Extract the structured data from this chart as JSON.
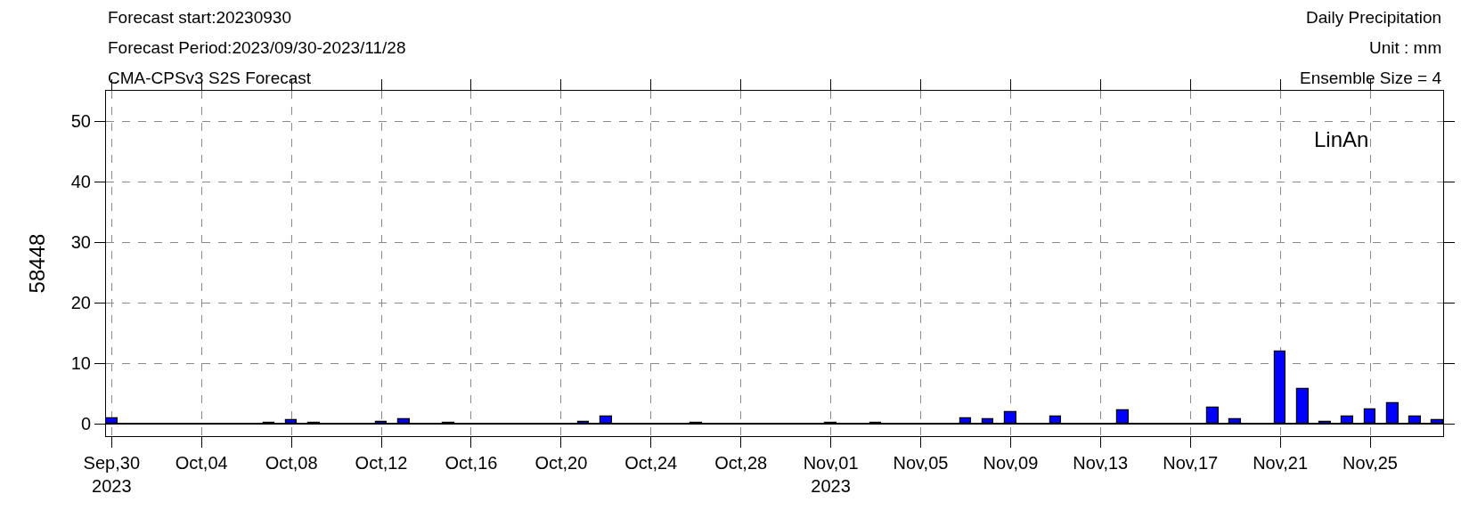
{
  "chart_data": {
    "type": "bar",
    "title": "Daily Precipitation",
    "subtitle": "Unit : mm",
    "ylabel": "58448",
    "annotations": [
      "Forecast start:20230930",
      "Forecast Period:2023/09/30-2023/11/28",
      "CMA-CPSv3 S2S Forecast",
      "Ensemble Size = 4",
      "LinAn"
    ],
    "x": [
      "2023-09-30",
      "2023-10-07",
      "2023-10-08",
      "2023-10-09",
      "2023-10-12",
      "2023-10-13",
      "2023-10-15",
      "2023-10-21",
      "2023-10-22",
      "2023-10-26",
      "2023-11-01",
      "2023-11-03",
      "2023-11-07",
      "2023-11-08",
      "2023-11-09",
      "2023-11-11",
      "2023-11-14",
      "2023-11-18",
      "2023-11-19",
      "2023-11-21",
      "2023-11-22",
      "2023-11-23",
      "2023-11-24",
      "2023-11-25",
      "2023-11-26",
      "2023-11-27",
      "2023-11-28"
    ],
    "values": [
      1.0,
      0.2,
      0.7,
      0.2,
      0.3,
      0.8,
      0.2,
      0.3,
      1.3,
      0.2,
      0.2,
      0.2,
      0.9,
      0.8,
      2.0,
      1.2,
      2.2,
      2.7,
      0.8,
      12.0,
      5.8,
      0.3,
      1.3,
      2.4,
      3.5,
      1.2,
      0.6
    ],
    "color": "#0000ff",
    "xlim": [
      "2023-09-29T18:00",
      "2023-11-28T06:00"
    ],
    "xticks": [
      {
        "value": "2023-09-30",
        "label": "Sep,30\n2023"
      },
      {
        "value": "2023-10-04",
        "label": "Oct,04"
      },
      {
        "value": "2023-10-08",
        "label": "Oct,08"
      },
      {
        "value": "2023-10-12",
        "label": "Oct,12"
      },
      {
        "value": "2023-10-16",
        "label": "Oct,16"
      },
      {
        "value": "2023-10-20",
        "label": "Oct,20"
      },
      {
        "value": "2023-10-24",
        "label": "Oct,24"
      },
      {
        "value": "2023-10-28",
        "label": "Oct,28"
      },
      {
        "value": "2023-11-01",
        "label": "Nov,01\n2023"
      },
      {
        "value": "2023-11-05",
        "label": "Nov,05"
      },
      {
        "value": "2023-11-09",
        "label": "Nov,09"
      },
      {
        "value": "2023-11-13",
        "label": "Nov,13"
      },
      {
        "value": "2023-11-17",
        "label": "Nov,17"
      },
      {
        "value": "2023-11-21",
        "label": "Nov,21"
      },
      {
        "value": "2023-11-25",
        "label": "Nov,25"
      }
    ],
    "ylim": [
      -2,
      55
    ],
    "yticks": [
      0,
      10,
      20,
      30,
      40,
      50
    ],
    "grid": true
  }
}
